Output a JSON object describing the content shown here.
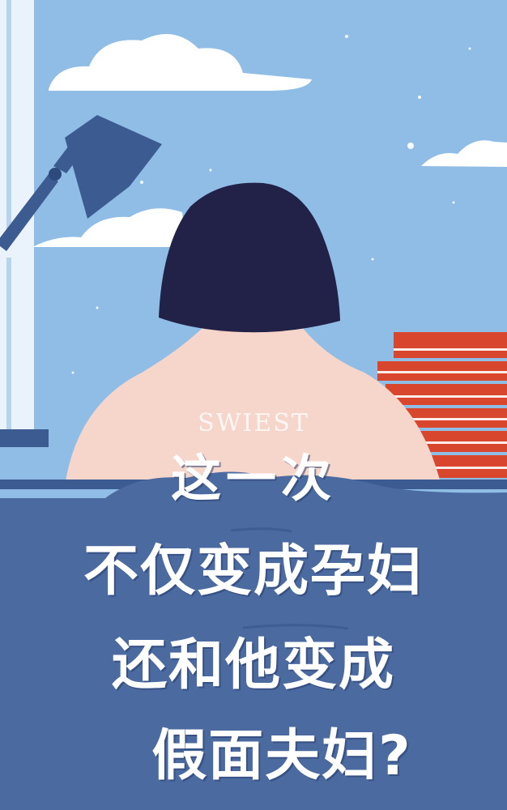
{
  "watermark": "SWIEST",
  "headline": {
    "line1": "这一次",
    "line2": "不仅变成孕妇",
    "line3": "还和他变成",
    "line4": "假面夫妇?"
  },
  "colors": {
    "sky": "#8fbde6",
    "cloud": "#ffffff",
    "hair": "#222148",
    "skin": "#f6d6cb",
    "blanket": "#4a6aa0",
    "books": "#d9462e",
    "lamp": "#3b5b91"
  }
}
